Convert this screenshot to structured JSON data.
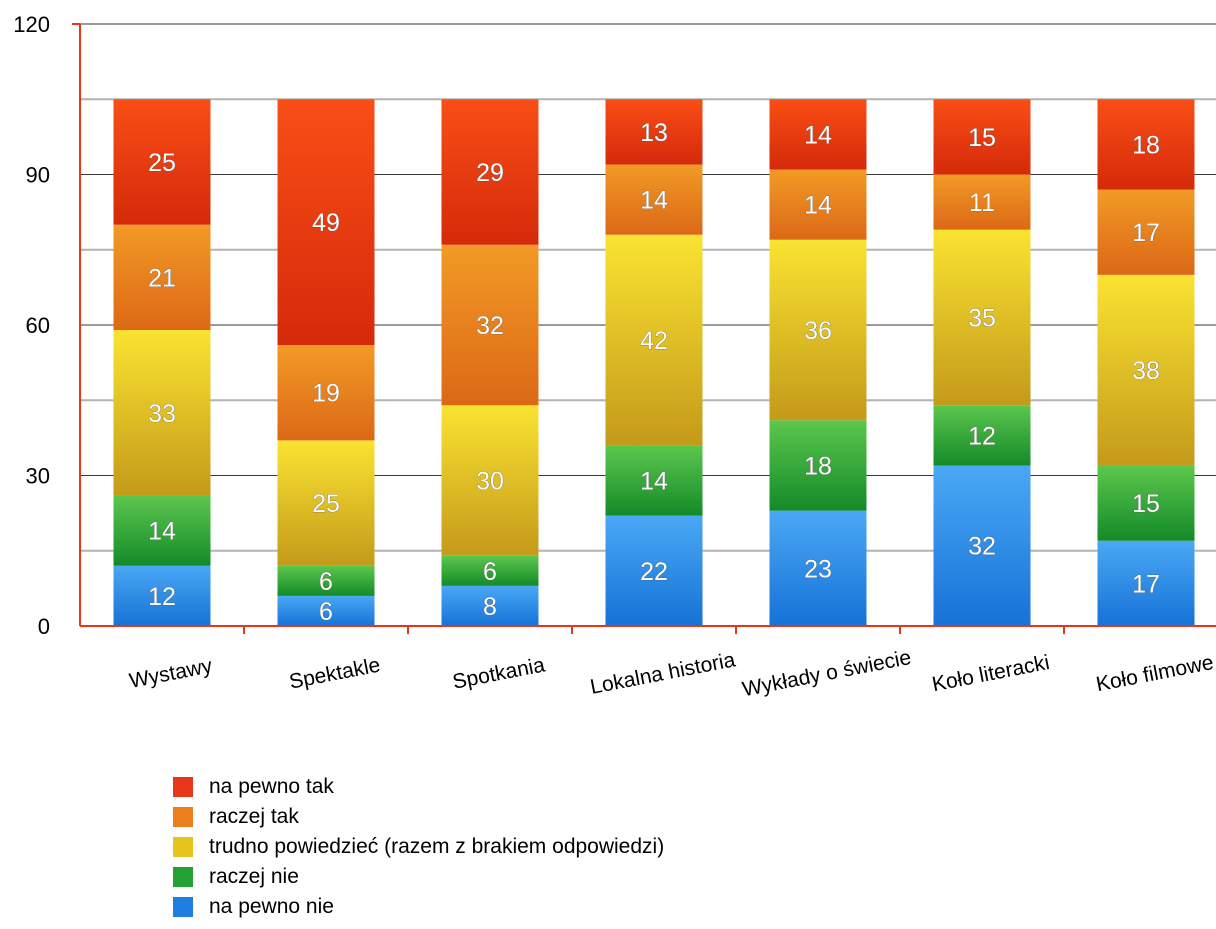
{
  "chart_data": {
    "type": "bar",
    "stacked": true,
    "title": "",
    "xlabel": "",
    "ylabel": "",
    "ylim": [
      0,
      120
    ],
    "yticks": [
      0,
      30,
      60,
      90,
      120
    ],
    "grid": true,
    "legend_position": "bottom-left",
    "categories": [
      "Wystawy",
      "Spektakle",
      "Spotkania",
      "Lokalna historia",
      "Wykłady o świecie",
      "Koło literacki",
      "Koło filmowe"
    ],
    "series": [
      {
        "name": "na pewno nie",
        "color": "#1f7fe0",
        "values": [
          12,
          6,
          8,
          22,
          23,
          32,
          17
        ]
      },
      {
        "name": "raczej nie",
        "color": "#23a134",
        "values": [
          14,
          6,
          6,
          14,
          18,
          12,
          15
        ]
      },
      {
        "name": "trudno powiedzieć (razem z brakiem odpowiedzi)",
        "color": "#e6c41c",
        "values": [
          33,
          25,
          30,
          42,
          36,
          35,
          38
        ]
      },
      {
        "name": "raczej tak",
        "color": "#ec7f1c",
        "values": [
          21,
          19,
          32,
          14,
          14,
          11,
          17
        ]
      },
      {
        "name": "na pewno tak",
        "color": "#e8361a",
        "values": [
          25,
          49,
          29,
          13,
          14,
          15,
          18
        ]
      }
    ],
    "legend_order": [
      "na pewno tak",
      "raczej tak",
      "trudno powiedzieć (razem z brakiem odpowiedzi)",
      "raczej nie",
      "na pewno nie"
    ]
  }
}
